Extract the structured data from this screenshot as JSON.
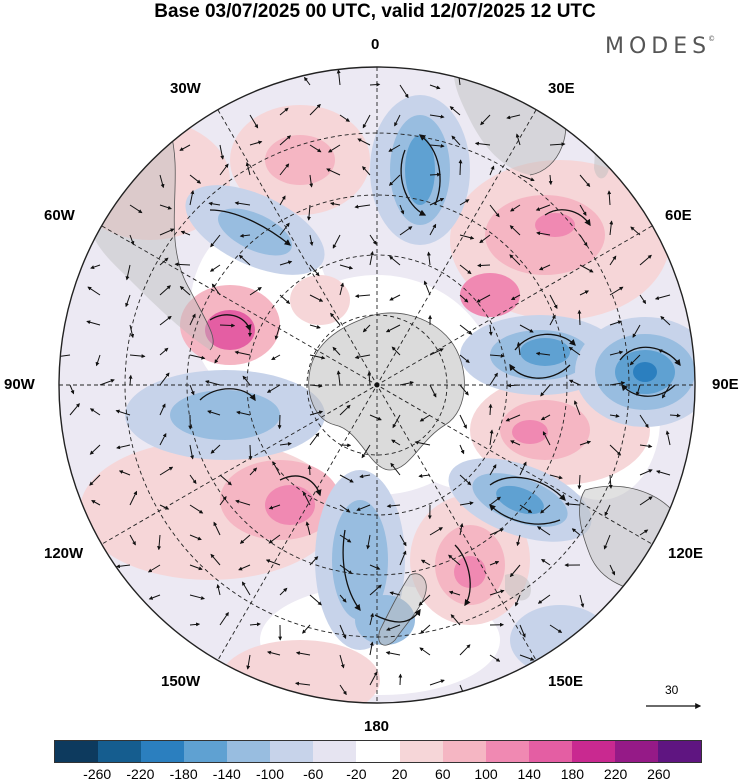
{
  "title": "Base 03/07/2025 00 UTC, valid 12/07/2025 12 UTC",
  "brand": "MODES",
  "brand_mark": "©",
  "longitude_labels": {
    "deg0": "0",
    "deg30e": "30E",
    "deg60e": "60E",
    "deg90e": "90E",
    "deg120e": "120E",
    "deg150e": "150E",
    "deg180": "180",
    "deg150w": "150W",
    "deg120w": "120W",
    "deg90w": "90W",
    "deg60w": "60W",
    "deg30w": "30W"
  },
  "wind_reference_vector": "30",
  "colorbar": {
    "colors": [
      "#0d3a5e",
      "#155d8f",
      "#2b7fbf",
      "#5fa1d2",
      "#98bde0",
      "#c7d3ea",
      "#e6e4f1",
      "#ffffff",
      "#f6d6d8",
      "#f5b6c3",
      "#f089b2",
      "#e45ea3",
      "#c92990",
      "#951a87",
      "#5f1581"
    ],
    "tick_labels": [
      "-260",
      "-220",
      "-180",
      "-140",
      "-100",
      "-60",
      "-20",
      "20",
      "60",
      "100",
      "140",
      "180",
      "220",
      "260"
    ]
  },
  "map_colors": {
    "ocean_neutral": "#ffffff",
    "land_overlay": "#bdbdbd",
    "grid": "#222222",
    "coast": "#555555"
  }
}
